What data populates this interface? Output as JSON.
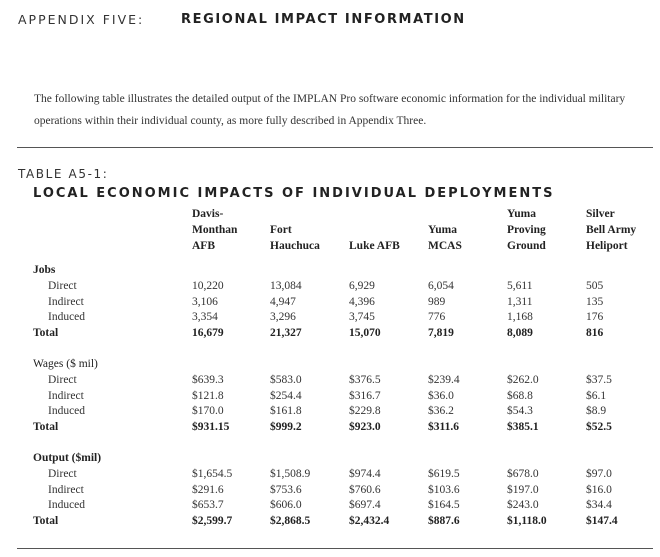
{
  "appendix": {
    "label": "APPENDIX FIVE:",
    "title": "REGIONAL IMPACT INFORMATION"
  },
  "intro": "The following table illustrates the detailed output of the IMPLAN Pro software economic information for the individual military operations within their individual county, as more fully described in Appendix Three.",
  "table": {
    "label": "TABLE A5-1:",
    "title": "LOCAL ECONOMIC IMPACTS OF INDIVIDUAL DEPLOYMENTS",
    "columns": [
      {
        "lines": [
          "Davis-",
          "Monthan",
          "AFB"
        ]
      },
      {
        "lines": [
          "Fort",
          "Hauchuca"
        ]
      },
      {
        "lines": [
          "Luke AFB"
        ]
      },
      {
        "lines": [
          "Yuma",
          "MCAS"
        ]
      },
      {
        "lines": [
          "Yuma",
          "Proving",
          "Ground"
        ]
      },
      {
        "lines": [
          "Silver",
          "Bell Army",
          "Heliport"
        ]
      }
    ],
    "sections": [
      {
        "title": "Jobs",
        "rows": [
          {
            "label": "Direct",
            "values": [
              "10,220",
              "13,084",
              "6,929",
              "6,054",
              "5,611",
              "505"
            ]
          },
          {
            "label": "Indirect",
            "values": [
              "3,106",
              "4,947",
              "4,396",
              "989",
              "1,311",
              "135"
            ]
          },
          {
            "label": "Induced",
            "values": [
              "3,354",
              "3,296",
              "3,745",
              "776",
              "1,168",
              "176"
            ]
          }
        ],
        "total": {
          "label": "Total",
          "values": [
            "16,679",
            "21,327",
            "15,070",
            "7,819",
            "8,089",
            "816"
          ]
        }
      },
      {
        "title": "Wages ($ mil)",
        "rows": [
          {
            "label": "Direct",
            "values": [
              "$639.3",
              "$583.0",
              "$376.5",
              "$239.4",
              "$262.0",
              "$37.5"
            ]
          },
          {
            "label": "Indirect",
            "values": [
              "$121.8",
              "$254.4",
              "$316.7",
              "$36.0",
              "$68.8",
              "$6.1"
            ]
          },
          {
            "label": "Induced",
            "values": [
              "$170.0",
              "$161.8",
              "$229.8",
              "$36.2",
              "$54.3",
              "$8.9"
            ]
          }
        ],
        "total": {
          "label": "Total",
          "values": [
            "$931.15",
            "$999.2",
            "$923.0",
            "$311.6",
            "$385.1",
            "$52.5"
          ]
        }
      },
      {
        "title": "Output ($mil)",
        "rows": [
          {
            "label": "Direct",
            "values": [
              "$1,654.5",
              "$1,508.9",
              "$974.4",
              "$619.5",
              "$678.0",
              "$97.0"
            ]
          },
          {
            "label": "Indirect",
            "values": [
              "$291.6",
              "$753.6",
              "$760.6",
              "$103.6",
              "$197.0",
              "$16.0"
            ]
          },
          {
            "label": "Induced",
            "values": [
              "$653.7",
              "$606.0",
              "$697.4",
              "$164.5",
              "$243.0",
              "$34.4"
            ]
          }
        ],
        "total": {
          "label": "Total",
          "values": [
            "$2,599.7",
            "$2,868.5",
            "$2,432.4",
            "$887.6",
            "$1,118.0",
            "$147.4"
          ]
        }
      }
    ]
  }
}
